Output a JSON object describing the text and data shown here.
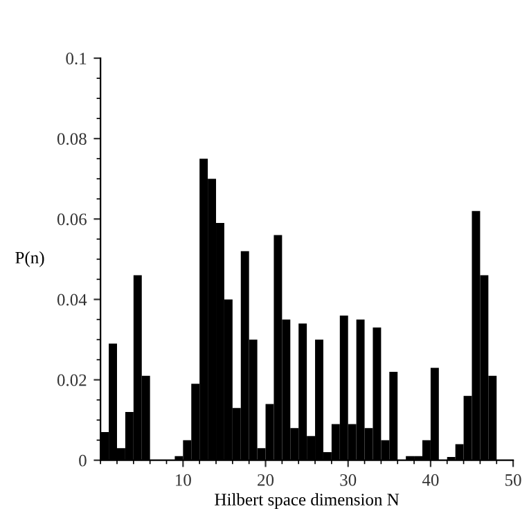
{
  "chart_data": {
    "type": "histogram",
    "xlabel": "Hilbert space dimension N",
    "ylabel": "P(n)",
    "bins": [
      0,
      1,
      2,
      3,
      4,
      5,
      6,
      7,
      8,
      9,
      10,
      11,
      12,
      13,
      14,
      15,
      16,
      17,
      18,
      19,
      20,
      21,
      22,
      23,
      24,
      25,
      26,
      27,
      28,
      29,
      30,
      31,
      32,
      33,
      34,
      35,
      36,
      37,
      38,
      39,
      40,
      41,
      42,
      43,
      44,
      45,
      46,
      47,
      48,
      49,
      50
    ],
    "values": [
      0.007,
      0.029,
      0.003,
      0.012,
      0.046,
      0.021,
      0,
      0,
      0,
      0.001,
      0.005,
      0.019,
      0.075,
      0.07,
      0.059,
      0.04,
      0.013,
      0.052,
      0.03,
      0.003,
      0.014,
      0.056,
      0.035,
      0.008,
      0.034,
      0.006,
      0.03,
      0.002,
      0.009,
      0.036,
      0.009,
      0.035,
      0.008,
      0.033,
      0.005,
      0.022,
      0,
      0.001,
      0.001,
      0.005,
      0.023,
      0,
      0.0008,
      0.004,
      0.016,
      0.062,
      0.046,
      0.021,
      0,
      0
    ],
    "color": "#000000",
    "xlim": [
      0,
      50
    ],
    "ylim": [
      0,
      0.1
    ],
    "xticks": [
      10,
      20,
      30,
      40,
      50
    ],
    "yticks": [
      0,
      0.02,
      0.04,
      0.06,
      0.08,
      0.1
    ],
    "grid": false,
    "legend": false
  }
}
